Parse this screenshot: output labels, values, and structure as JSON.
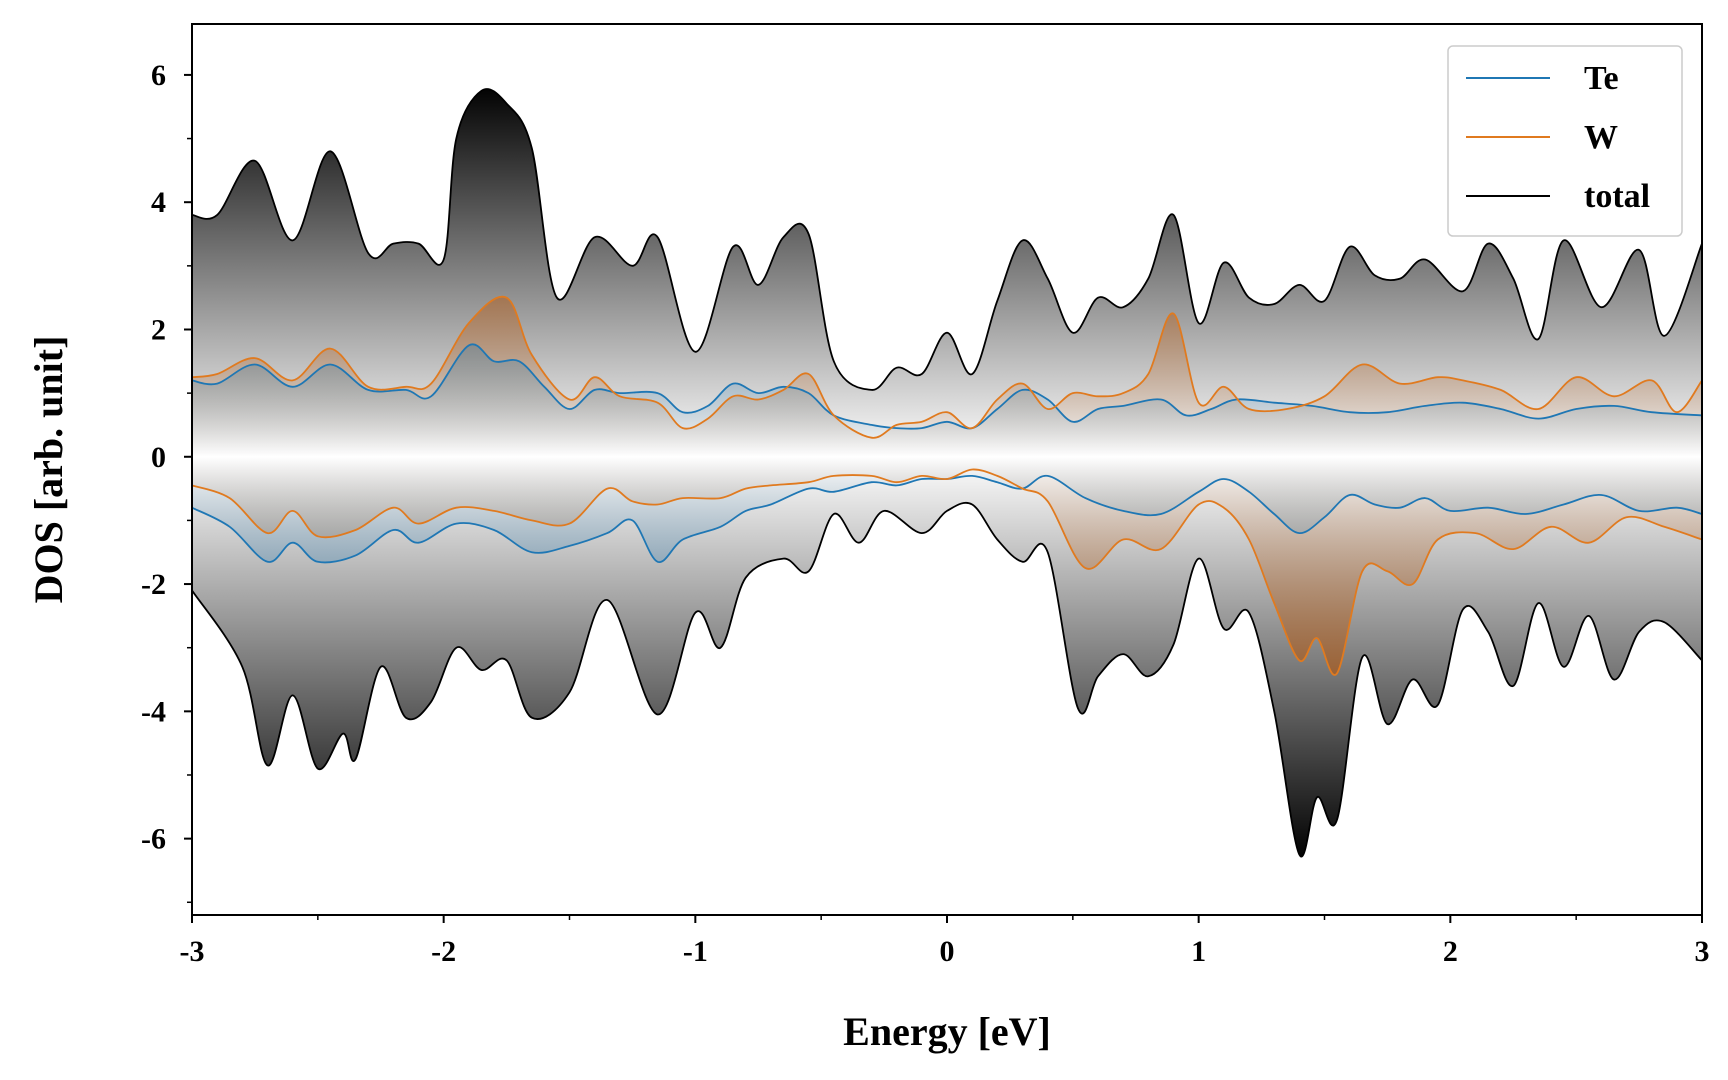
{
  "chart_data": {
    "type": "area",
    "xlabel": "Energy [eV]",
    "ylabel": "DOS [arb. unit]",
    "xlim": [
      -3,
      3
    ],
    "ylim": [
      -7.2,
      6.8
    ],
    "x_ticks": [
      -3,
      -2,
      -1,
      0,
      1,
      2,
      3
    ],
    "x_tick_labels": [
      "-3",
      "-2",
      "-1",
      "0",
      "1",
      "2",
      "3"
    ],
    "y_ticks": [
      -6,
      -4,
      -2,
      0,
      2,
      4,
      6
    ],
    "y_tick_labels": [
      "-6",
      "-4",
      "-2",
      "0",
      "2",
      "4",
      "6"
    ],
    "grid": false,
    "legend_position": "top-right",
    "series": [
      {
        "name": "Te",
        "color": "#1f77b4",
        "spin_up": [
          [
            -3,
            1.2
          ],
          [
            -2.9,
            1.15
          ],
          [
            -2.75,
            1.45
          ],
          [
            -2.6,
            1.1
          ],
          [
            -2.45,
            1.45
          ],
          [
            -2.3,
            1.05
          ],
          [
            -2.15,
            1.05
          ],
          [
            -2.05,
            0.95
          ],
          [
            -1.9,
            1.75
          ],
          [
            -1.8,
            1.5
          ],
          [
            -1.7,
            1.5
          ],
          [
            -1.6,
            1.1
          ],
          [
            -1.5,
            0.75
          ],
          [
            -1.4,
            1.05
          ],
          [
            -1.3,
            1.0
          ],
          [
            -1.15,
            1.0
          ],
          [
            -1.05,
            0.7
          ],
          [
            -0.95,
            0.8
          ],
          [
            -0.85,
            1.15
          ],
          [
            -0.75,
            1.0
          ],
          [
            -0.65,
            1.1
          ],
          [
            -0.55,
            1.0
          ],
          [
            -0.45,
            0.65
          ],
          [
            -0.3,
            0.5
          ],
          [
            -0.2,
            0.45
          ],
          [
            -0.1,
            0.45
          ],
          [
            0.0,
            0.55
          ],
          [
            0.1,
            0.45
          ],
          [
            0.2,
            0.75
          ],
          [
            0.3,
            1.05
          ],
          [
            0.4,
            0.9
          ],
          [
            0.5,
            0.55
          ],
          [
            0.6,
            0.75
          ],
          [
            0.7,
            0.8
          ],
          [
            0.85,
            0.9
          ],
          [
            0.95,
            0.65
          ],
          [
            1.05,
            0.75
          ],
          [
            1.15,
            0.9
          ],
          [
            1.3,
            0.85
          ],
          [
            1.45,
            0.8
          ],
          [
            1.6,
            0.7
          ],
          [
            1.75,
            0.7
          ],
          [
            1.9,
            0.8
          ],
          [
            2.05,
            0.85
          ],
          [
            2.2,
            0.75
          ],
          [
            2.35,
            0.6
          ],
          [
            2.5,
            0.75
          ],
          [
            2.65,
            0.8
          ],
          [
            2.8,
            0.7
          ],
          [
            3.0,
            0.65
          ]
        ],
        "spin_down": [
          [
            -3,
            -0.8
          ],
          [
            -2.85,
            -1.1
          ],
          [
            -2.7,
            -1.65
          ],
          [
            -2.6,
            -1.35
          ],
          [
            -2.5,
            -1.65
          ],
          [
            -2.35,
            -1.55
          ],
          [
            -2.2,
            -1.15
          ],
          [
            -2.1,
            -1.35
          ],
          [
            -1.95,
            -1.05
          ],
          [
            -1.8,
            -1.15
          ],
          [
            -1.65,
            -1.5
          ],
          [
            -1.5,
            -1.4
          ],
          [
            -1.35,
            -1.2
          ],
          [
            -1.25,
            -1.0
          ],
          [
            -1.15,
            -1.65
          ],
          [
            -1.05,
            -1.3
          ],
          [
            -0.9,
            -1.1
          ],
          [
            -0.8,
            -0.85
          ],
          [
            -0.7,
            -0.75
          ],
          [
            -0.55,
            -0.5
          ],
          [
            -0.45,
            -0.55
          ],
          [
            -0.3,
            -0.4
          ],
          [
            -0.2,
            -0.45
          ],
          [
            -0.1,
            -0.35
          ],
          [
            0.0,
            -0.35
          ],
          [
            0.1,
            -0.3
          ],
          [
            0.2,
            -0.4
          ],
          [
            0.3,
            -0.5
          ],
          [
            0.4,
            -0.3
          ],
          [
            0.55,
            -0.65
          ],
          [
            0.7,
            -0.85
          ],
          [
            0.85,
            -0.9
          ],
          [
            1.0,
            -0.55
          ],
          [
            1.1,
            -0.35
          ],
          [
            1.2,
            -0.55
          ],
          [
            1.3,
            -0.9
          ],
          [
            1.4,
            -1.2
          ],
          [
            1.5,
            -0.95
          ],
          [
            1.6,
            -0.6
          ],
          [
            1.7,
            -0.75
          ],
          [
            1.8,
            -0.8
          ],
          [
            1.9,
            -0.65
          ],
          [
            2.0,
            -0.85
          ],
          [
            2.15,
            -0.8
          ],
          [
            2.3,
            -0.9
          ],
          [
            2.45,
            -0.75
          ],
          [
            2.6,
            -0.6
          ],
          [
            2.75,
            -0.85
          ],
          [
            2.9,
            -0.8
          ],
          [
            3.0,
            -0.9
          ]
        ]
      },
      {
        "name": "W",
        "color": "#e07a1f",
        "spin_up": [
          [
            -3,
            1.25
          ],
          [
            -2.9,
            1.3
          ],
          [
            -2.75,
            1.55
          ],
          [
            -2.6,
            1.2
          ],
          [
            -2.45,
            1.7
          ],
          [
            -2.3,
            1.1
          ],
          [
            -2.15,
            1.1
          ],
          [
            -2.05,
            1.15
          ],
          [
            -1.9,
            2.1
          ],
          [
            -1.75,
            2.5
          ],
          [
            -1.65,
            1.6
          ],
          [
            -1.5,
            0.9
          ],
          [
            -1.4,
            1.25
          ],
          [
            -1.3,
            0.95
          ],
          [
            -1.15,
            0.85
          ],
          [
            -1.05,
            0.45
          ],
          [
            -0.95,
            0.6
          ],
          [
            -0.85,
            0.95
          ],
          [
            -0.75,
            0.9
          ],
          [
            -0.65,
            1.05
          ],
          [
            -0.55,
            1.3
          ],
          [
            -0.45,
            0.65
          ],
          [
            -0.3,
            0.3
          ],
          [
            -0.2,
            0.5
          ],
          [
            -0.1,
            0.55
          ],
          [
            0.0,
            0.7
          ],
          [
            0.1,
            0.45
          ],
          [
            0.2,
            0.9
          ],
          [
            0.3,
            1.15
          ],
          [
            0.4,
            0.75
          ],
          [
            0.5,
            1.0
          ],
          [
            0.6,
            0.95
          ],
          [
            0.7,
            1.0
          ],
          [
            0.8,
            1.3
          ],
          [
            0.9,
            2.25
          ],
          [
            1.0,
            0.85
          ],
          [
            1.1,
            1.1
          ],
          [
            1.2,
            0.75
          ],
          [
            1.35,
            0.75
          ],
          [
            1.5,
            0.95
          ],
          [
            1.65,
            1.45
          ],
          [
            1.8,
            1.15
          ],
          [
            1.95,
            1.25
          ],
          [
            2.05,
            1.2
          ],
          [
            2.2,
            1.05
          ],
          [
            2.35,
            0.75
          ],
          [
            2.5,
            1.25
          ],
          [
            2.65,
            0.95
          ],
          [
            2.8,
            1.2
          ],
          [
            2.9,
            0.7
          ],
          [
            3.0,
            1.2
          ]
        ],
        "spin_down": [
          [
            -3,
            -0.45
          ],
          [
            -2.85,
            -0.65
          ],
          [
            -2.7,
            -1.2
          ],
          [
            -2.6,
            -0.85
          ],
          [
            -2.5,
            -1.25
          ],
          [
            -2.35,
            -1.15
          ],
          [
            -2.2,
            -0.8
          ],
          [
            -2.1,
            -1.05
          ],
          [
            -1.95,
            -0.8
          ],
          [
            -1.8,
            -0.85
          ],
          [
            -1.65,
            -1.0
          ],
          [
            -1.5,
            -1.05
          ],
          [
            -1.35,
            -0.5
          ],
          [
            -1.25,
            -0.7
          ],
          [
            -1.15,
            -0.75
          ],
          [
            -1.05,
            -0.65
          ],
          [
            -0.9,
            -0.65
          ],
          [
            -0.8,
            -0.5
          ],
          [
            -0.7,
            -0.45
          ],
          [
            -0.55,
            -0.4
          ],
          [
            -0.45,
            -0.3
          ],
          [
            -0.3,
            -0.3
          ],
          [
            -0.2,
            -0.4
          ],
          [
            -0.1,
            -0.3
          ],
          [
            0.0,
            -0.35
          ],
          [
            0.1,
            -0.2
          ],
          [
            0.2,
            -0.3
          ],
          [
            0.3,
            -0.5
          ],
          [
            0.4,
            -0.7
          ],
          [
            0.55,
            -1.75
          ],
          [
            0.7,
            -1.3
          ],
          [
            0.85,
            -1.45
          ],
          [
            1.0,
            -0.75
          ],
          [
            1.1,
            -0.8
          ],
          [
            1.2,
            -1.3
          ],
          [
            1.3,
            -2.3
          ],
          [
            1.4,
            -3.2
          ],
          [
            1.47,
            -2.85
          ],
          [
            1.55,
            -3.4
          ],
          [
            1.65,
            -1.8
          ],
          [
            1.75,
            -1.8
          ],
          [
            1.85,
            -2.0
          ],
          [
            1.95,
            -1.3
          ],
          [
            2.1,
            -1.2
          ],
          [
            2.25,
            -1.45
          ],
          [
            2.4,
            -1.1
          ],
          [
            2.55,
            -1.35
          ],
          [
            2.7,
            -0.95
          ],
          [
            2.85,
            -1.1
          ],
          [
            3.0,
            -1.3
          ]
        ]
      },
      {
        "name": "total",
        "color": "#000000",
        "spin_up": [
          [
            -3,
            3.8
          ],
          [
            -2.9,
            3.8
          ],
          [
            -2.75,
            4.65
          ],
          [
            -2.6,
            3.4
          ],
          [
            -2.45,
            4.8
          ],
          [
            -2.3,
            3.2
          ],
          [
            -2.2,
            3.35
          ],
          [
            -2.1,
            3.35
          ],
          [
            -2.0,
            3.1
          ],
          [
            -1.95,
            5.0
          ],
          [
            -1.85,
            5.75
          ],
          [
            -1.75,
            5.55
          ],
          [
            -1.65,
            4.85
          ],
          [
            -1.55,
            2.5
          ],
          [
            -1.4,
            3.45
          ],
          [
            -1.25,
            3.0
          ],
          [
            -1.15,
            3.45
          ],
          [
            -1.0,
            1.65
          ],
          [
            -0.85,
            3.3
          ],
          [
            -0.75,
            2.7
          ],
          [
            -0.65,
            3.45
          ],
          [
            -0.55,
            3.5
          ],
          [
            -0.45,
            1.5
          ],
          [
            -0.3,
            1.05
          ],
          [
            -0.2,
            1.4
          ],
          [
            -0.1,
            1.3
          ],
          [
            0.0,
            1.95
          ],
          [
            0.1,
            1.3
          ],
          [
            0.2,
            2.45
          ],
          [
            0.3,
            3.4
          ],
          [
            0.4,
            2.8
          ],
          [
            0.5,
            1.95
          ],
          [
            0.6,
            2.5
          ],
          [
            0.7,
            2.35
          ],
          [
            0.8,
            2.8
          ],
          [
            0.9,
            3.8
          ],
          [
            1.0,
            2.1
          ],
          [
            1.1,
            3.05
          ],
          [
            1.2,
            2.5
          ],
          [
            1.3,
            2.4
          ],
          [
            1.4,
            2.7
          ],
          [
            1.5,
            2.45
          ],
          [
            1.6,
            3.3
          ],
          [
            1.7,
            2.85
          ],
          [
            1.8,
            2.8
          ],
          [
            1.9,
            3.1
          ],
          [
            2.05,
            2.6
          ],
          [
            2.15,
            3.35
          ],
          [
            2.25,
            2.8
          ],
          [
            2.35,
            1.85
          ],
          [
            2.45,
            3.4
          ],
          [
            2.6,
            2.35
          ],
          [
            2.75,
            3.25
          ],
          [
            2.85,
            1.9
          ],
          [
            3.0,
            3.35
          ]
        ],
        "spin_down": [
          [
            -3,
            -2.1
          ],
          [
            -2.8,
            -3.3
          ],
          [
            -2.7,
            -4.85
          ],
          [
            -2.6,
            -3.75
          ],
          [
            -2.5,
            -4.9
          ],
          [
            -2.4,
            -4.35
          ],
          [
            -2.35,
            -4.75
          ],
          [
            -2.25,
            -3.3
          ],
          [
            -2.15,
            -4.1
          ],
          [
            -2.05,
            -3.85
          ],
          [
            -1.95,
            -3.0
          ],
          [
            -1.85,
            -3.35
          ],
          [
            -1.75,
            -3.2
          ],
          [
            -1.65,
            -4.1
          ],
          [
            -1.5,
            -3.7
          ],
          [
            -1.35,
            -2.25
          ],
          [
            -1.15,
            -4.05
          ],
          [
            -1.0,
            -2.45
          ],
          [
            -0.9,
            -3.0
          ],
          [
            -0.8,
            -1.9
          ],
          [
            -0.65,
            -1.6
          ],
          [
            -0.55,
            -1.8
          ],
          [
            -0.45,
            -0.9
          ],
          [
            -0.35,
            -1.35
          ],
          [
            -0.25,
            -0.85
          ],
          [
            -0.1,
            -1.2
          ],
          [
            0.0,
            -0.85
          ],
          [
            0.1,
            -0.75
          ],
          [
            0.2,
            -1.3
          ],
          [
            0.3,
            -1.65
          ],
          [
            0.4,
            -1.5
          ],
          [
            0.52,
            -3.95
          ],
          [
            0.6,
            -3.45
          ],
          [
            0.7,
            -3.1
          ],
          [
            0.8,
            -3.45
          ],
          [
            0.9,
            -2.95
          ],
          [
            1.0,
            -1.6
          ],
          [
            1.1,
            -2.7
          ],
          [
            1.2,
            -2.45
          ],
          [
            1.3,
            -4.0
          ],
          [
            1.4,
            -6.25
          ],
          [
            1.47,
            -5.35
          ],
          [
            1.55,
            -5.7
          ],
          [
            1.65,
            -3.15
          ],
          [
            1.75,
            -4.2
          ],
          [
            1.85,
            -3.5
          ],
          [
            1.95,
            -3.9
          ],
          [
            2.05,
            -2.4
          ],
          [
            2.15,
            -2.75
          ],
          [
            2.25,
            -3.6
          ],
          [
            2.35,
            -2.3
          ],
          [
            2.45,
            -3.3
          ],
          [
            2.55,
            -2.5
          ],
          [
            2.65,
            -3.5
          ],
          [
            2.75,
            -2.75
          ],
          [
            2.85,
            -2.6
          ],
          [
            3.0,
            -3.2
          ]
        ]
      }
    ]
  }
}
